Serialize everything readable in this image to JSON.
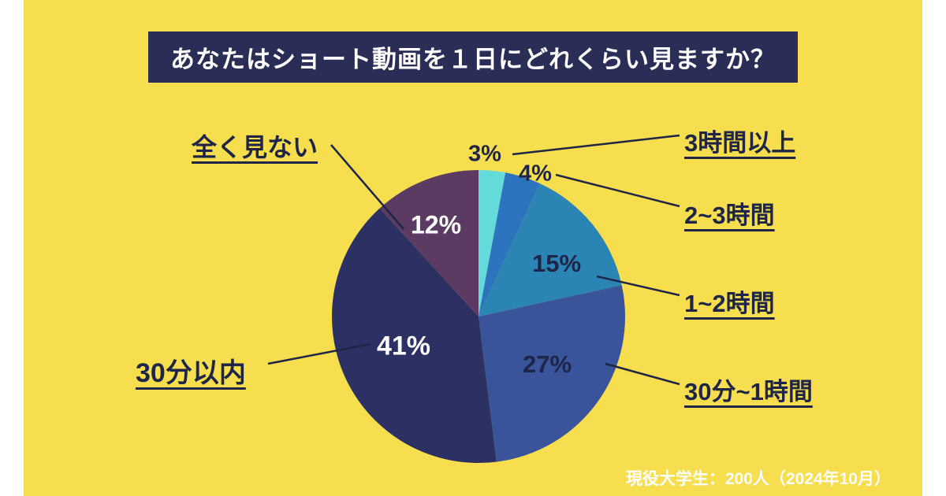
{
  "title": "あなたはショート動画を１日にどれくらい見ますか？",
  "footer": "現役大学生：200人（2024年10月）",
  "colors": {
    "background": "#F7DE4E",
    "outer_margin": "#FFFFFF",
    "title_bg": "#2A2E56",
    "title_text": "#FFFFFF",
    "label_text": "#1E2546",
    "leader_line": "#1E2546",
    "footer_text": "#FFFFFF"
  },
  "chart_data": {
    "type": "pie",
    "title": "あなたはショート動画を１日にどれくらい見ますか？",
    "start_angle_deg": 0,
    "direction": "clockwise",
    "legend_position": "none",
    "slices": [
      {
        "key": "3h-plus",
        "label": "3時間以上",
        "value": 3,
        "pct_label": "3%",
        "color": "#63DBDB"
      },
      {
        "key": "2-3h",
        "label": "2~3時間",
        "value": 4,
        "pct_label": "4%",
        "color": "#2D74BF"
      },
      {
        "key": "1-2h",
        "label": "1~2時間",
        "value": 15,
        "pct_label": "15%",
        "color": "#2A84B4"
      },
      {
        "key": "30m-1h",
        "label": "30分~1時間",
        "value": 27,
        "pct_label": "27%",
        "color": "#3A549B"
      },
      {
        "key": "under-30m",
        "label": "30分以内",
        "value": 41,
        "pct_label": "41%",
        "color": "#2C3062"
      },
      {
        "key": "none",
        "label": "全く見ない",
        "value": 12,
        "pct_label": "12%",
        "color": "#5B3B61"
      }
    ]
  }
}
